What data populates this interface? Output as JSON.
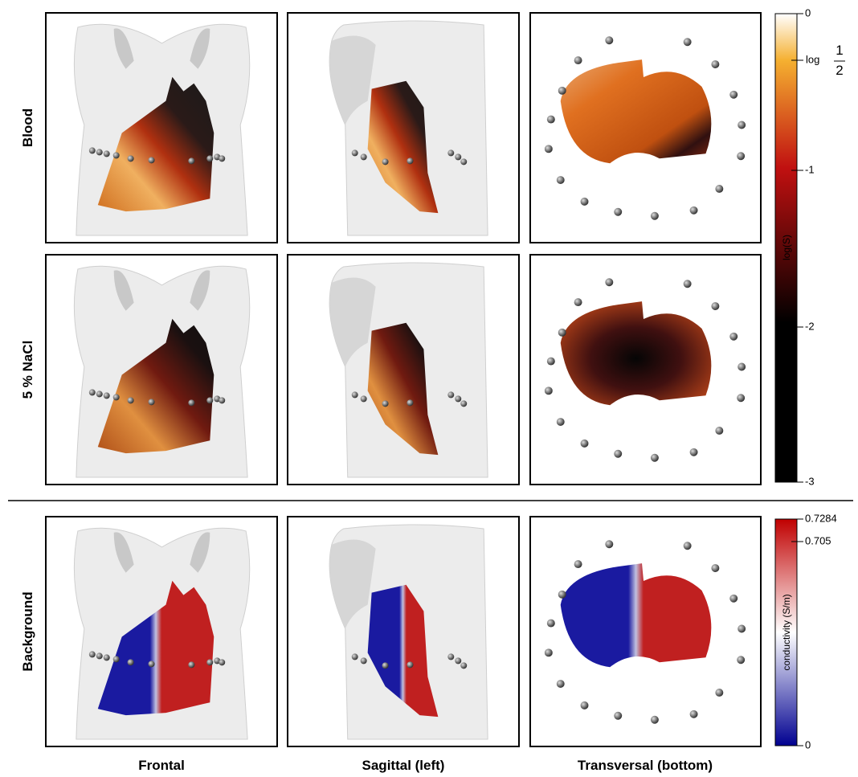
{
  "row_labels": [
    "Blood",
    "5 % NaCl",
    "Background"
  ],
  "column_labels": [
    "Frontal",
    "Sagittal (left)",
    "Transversal (bottom)"
  ],
  "colorbars": [
    {
      "title": "log(S)",
      "ticks": [
        "0",
        {
          "prefix": "log",
          "numerator": "1",
          "denominator": "2"
        },
        "-1",
        "-2",
        "-3"
      ]
    },
    {
      "title": "conductivity (S/m)",
      "ticks": [
        "0.7284",
        "0.705",
        "0"
      ]
    }
  ]
}
